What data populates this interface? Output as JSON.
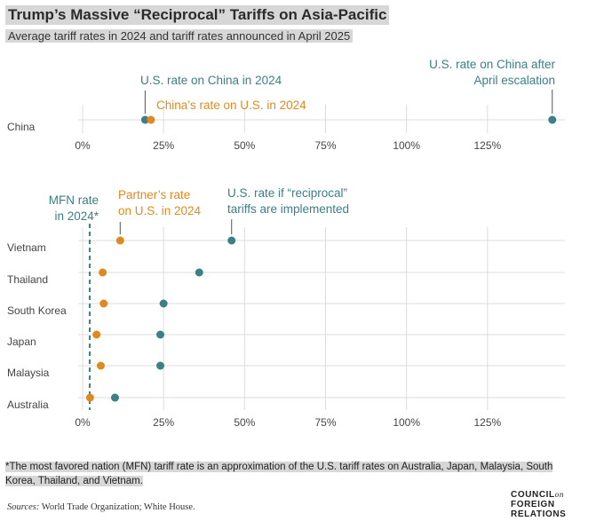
{
  "header": {
    "title": "Trump’s Massive “Reciprocal” Tariffs on Asia-Pacific",
    "subtitle": "Average tariff rates in 2024 and tariff rates announced in April 2025"
  },
  "colors": {
    "us": "#3a8086",
    "partner": "#e08a1e",
    "grid": "#dcdcdc",
    "text": "#444444"
  },
  "chart_data": [
    {
      "type": "scatter",
      "categories": [
        "China"
      ],
      "x_ticks": [
        "0%",
        "25%",
        "50%",
        "75%",
        "100%",
        "125%"
      ],
      "xlim": [
        0,
        150
      ],
      "series": [
        {
          "name": "U.S. rate on China in 2024",
          "values": [
            19.3
          ],
          "color": "#3a8086"
        },
        {
          "name": "China's rate on U.S. in 2024",
          "values": [
            21.1
          ],
          "color": "#e08a1e"
        },
        {
          "name": "U.S. rate on China after April escalation",
          "values": [
            145
          ],
          "color": "#3a8086"
        }
      ],
      "annotations": {
        "us_2024": "U.S. rate on China in 2024",
        "china_2024": "China’s rate on U.S. in 2024",
        "after_line1": "U.S. rate on China after",
        "after_line2": "April escalation"
      }
    },
    {
      "type": "scatter",
      "categories": [
        "Vietnam",
        "Thailand",
        "South Korea",
        "Japan",
        "Malaysia",
        "Australia"
      ],
      "x_ticks": [
        "0%",
        "25%",
        "50%",
        "75%",
        "100%",
        "125%"
      ],
      "xlim": [
        0,
        150
      ],
      "series": [
        {
          "name": "Partner's rate on U.S. in 2024",
          "values": [
            11.6,
            6.2,
            6.5,
            4.3,
            5.6,
            2.3
          ],
          "color": "#e08a1e"
        },
        {
          "name": "U.S. rate if “reciprocal” tariffs are implemented",
          "values": [
            46,
            36,
            25,
            24,
            24,
            10
          ],
          "color": "#3a8086"
        }
      ],
      "mfn_rate": 2.2,
      "annotations": {
        "mfn_line1": "MFN rate",
        "mfn_line2": "in 2024*",
        "partner_line1": "Partner’s rate",
        "partner_line2": "on U.S. in 2024",
        "recip_line1": "U.S. rate if “reciprocal”",
        "recip_line2": "tariffs are implemented"
      }
    }
  ],
  "footer": {
    "note": "*The most favored nation (MFN) tariff rate is an approximation of the U.S. tariff rates on Australia, Japan, Malaysia, South Korea, Thailand, and Vietnam.",
    "sources_label": "Sources:",
    "sources_text": " World Trade Organization; White House.",
    "logo_line1": "COUNCIL",
    "logo_on": "on",
    "logo_line2": "FOREIGN",
    "logo_line3": "RELATIONS"
  }
}
